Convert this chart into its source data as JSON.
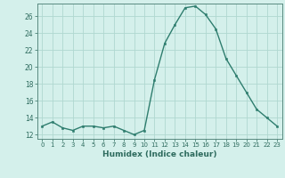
{
  "x": [
    0,
    1,
    2,
    3,
    4,
    5,
    6,
    7,
    8,
    9,
    10,
    11,
    12,
    13,
    14,
    15,
    16,
    17,
    18,
    19,
    20,
    21,
    22,
    23
  ],
  "y": [
    13,
    13.5,
    12.8,
    12.5,
    13,
    13,
    12.8,
    13,
    12.5,
    12,
    12.5,
    18.5,
    22.8,
    25,
    27,
    27.2,
    26.2,
    24.5,
    21.0,
    19.0,
    17.0,
    15.0,
    14.0,
    13.0
  ],
  "line_color": "#2e7d6e",
  "marker_color": "#2e7d6e",
  "bg_color": "#d4f0eb",
  "grid_color": "#b0d8d0",
  "xlabel": "Humidex (Indice chaleur)",
  "xlim": [
    -0.5,
    23.5
  ],
  "ylim": [
    11.5,
    27.5
  ],
  "yticks": [
    12,
    14,
    16,
    18,
    20,
    22,
    24,
    26
  ],
  "xticks": [
    0,
    1,
    2,
    3,
    4,
    5,
    6,
    7,
    8,
    9,
    10,
    11,
    12,
    13,
    14,
    15,
    16,
    17,
    18,
    19,
    20,
    21,
    22,
    23
  ],
  "font_color": "#2e6b5e",
  "axis_color": "#5a8a80"
}
